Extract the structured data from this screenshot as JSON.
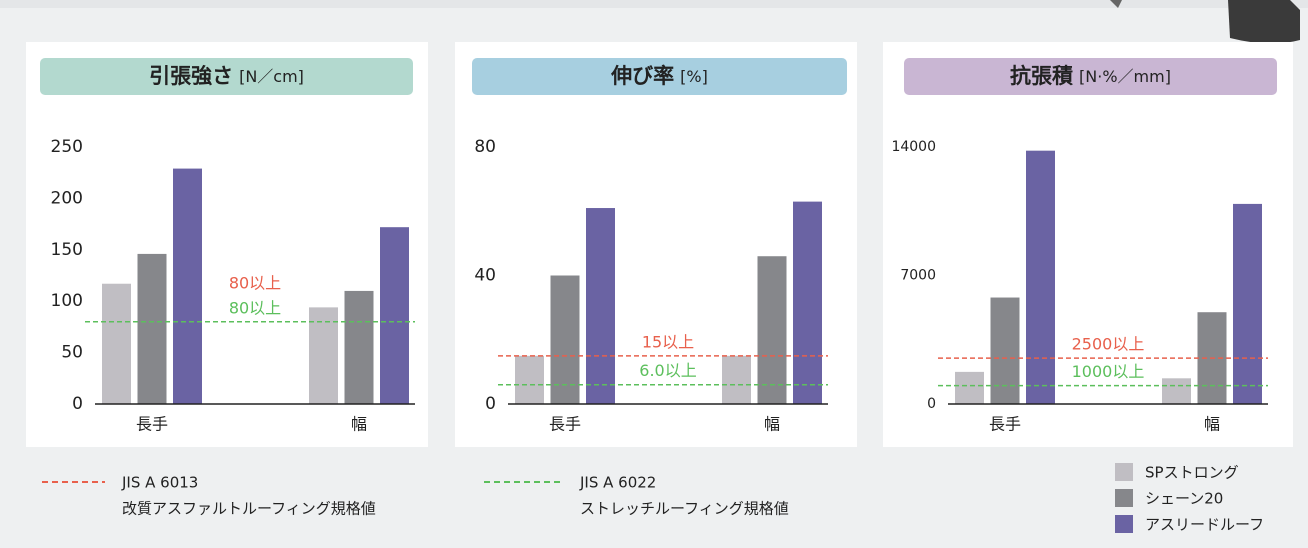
{
  "chart_data": [
    {
      "type": "bar",
      "title": "引張強さ",
      "unit": "[N／cm]",
      "title_color": "#b3d9cf",
      "categories": [
        "長手",
        "幅"
      ],
      "series": [
        {
          "name": "SPストロング",
          "color": "#c0bec3",
          "values": [
            117,
            94
          ]
        },
        {
          "name": "シェーン20",
          "color": "#86878b",
          "values": [
            146,
            110
          ]
        },
        {
          "name": "アスリードルーフ",
          "color": "#6a63a3",
          "values": [
            229,
            172
          ]
        }
      ],
      "ylim": [
        0,
        250
      ],
      "yticks": [
        0,
        50,
        100,
        150,
        200,
        250
      ],
      "grid": false,
      "reference_lines": [
        {
          "value": 80,
          "label": "80以上",
          "color": "#e8604c"
        },
        {
          "value": 80,
          "label": "80以上",
          "color": "#5cbf5c"
        }
      ]
    },
    {
      "type": "bar",
      "title": "伸び率",
      "unit": "[%]",
      "title_color": "#a7cfe0",
      "categories": [
        "長手",
        "幅"
      ],
      "series": [
        {
          "color": "#c0bec3",
          "values": [
            15,
            15
          ]
        },
        {
          "color": "#86878b",
          "values": [
            40,
            46
          ]
        },
        {
          "color": "#6a63a3",
          "values": [
            61,
            63
          ]
        }
      ],
      "ylim": [
        0,
        80
      ],
      "yticks": [
        0,
        40,
        80
      ],
      "grid": false,
      "reference_lines": [
        {
          "value": 15,
          "label": "15以上",
          "color": "#e8604c"
        },
        {
          "value": 6,
          "label": "6.0以上",
          "color": "#5cbf5c"
        }
      ]
    },
    {
      "type": "bar",
      "title": "抗張積",
      "unit": "[N·%／mm]",
      "title_color": "#c9b6d3",
      "categories": [
        "長手",
        "幅"
      ],
      "series": [
        {
          "color": "#c0bec3",
          "values": [
            1750,
            1400
          ]
        },
        {
          "color": "#86878b",
          "values": [
            5800,
            5000
          ]
        },
        {
          "color": "#6a63a3",
          "values": [
            13800,
            10900
          ]
        }
      ],
      "ylim": [
        0,
        14000
      ],
      "yticks": [
        0,
        7000,
        14000
      ],
      "grid": false,
      "reference_lines": [
        {
          "value": 2500,
          "label": "2500以上",
          "color": "#e8604c"
        },
        {
          "value": 1000,
          "label": "1000以上",
          "color": "#5cbf5c"
        }
      ]
    }
  ],
  "reference_legend": [
    {
      "name": "JIS A 6013",
      "description": "改質アスファルトルーフィング規格値",
      "color": "#e8604c"
    },
    {
      "name": "JIS A 6022",
      "description": "ストレッチルーフィング規格値",
      "color": "#5cbf5c"
    }
  ]
}
